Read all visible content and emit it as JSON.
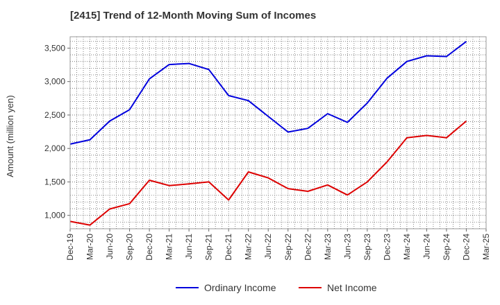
{
  "chart_data": {
    "type": "line",
    "title": "[2415]  Trend of 12-Month Moving Sum of Incomes",
    "xlabel": "",
    "ylabel": "Amount (million yen)",
    "ylim": [
      800,
      3670
    ],
    "yticks": [
      1000,
      1500,
      2000,
      2500,
      3000,
      3500
    ],
    "ytick_labels": [
      "1,000",
      "1,500",
      "2,000",
      "2,500",
      "3,000",
      "3,500"
    ],
    "grid": true,
    "legend_position": "bottom-center",
    "x": [
      "Dec-19",
      "Mar-20",
      "Jun-20",
      "Sep-20",
      "Dec-20",
      "Mar-21",
      "Jun-21",
      "Sep-21",
      "Dec-21",
      "Mar-22",
      "Jun-22",
      "Sep-22",
      "Dec-22",
      "Mar-23",
      "Jun-23",
      "Sep-23",
      "Dec-23",
      "Mar-24",
      "Jun-24",
      "Sep-24",
      "Dec-24",
      "Mar-25"
    ],
    "series": [
      {
        "name": "Ordinary Income",
        "color": "#0000dd",
        "values": [
          2065,
          2130,
          2410,
          2580,
          3040,
          3255,
          3270,
          3180,
          2790,
          2715,
          2480,
          2245,
          2300,
          2520,
          2390,
          2680,
          3050,
          3300,
          3385,
          3375,
          3600,
          null
        ]
      },
      {
        "name": "Net Income",
        "color": "#dd0000",
        "values": [
          910,
          855,
          1095,
          1175,
          1525,
          1445,
          1470,
          1500,
          1230,
          1650,
          1560,
          1400,
          1360,
          1455,
          1305,
          1500,
          1800,
          2160,
          2195,
          2160,
          2410,
          null
        ]
      }
    ]
  }
}
